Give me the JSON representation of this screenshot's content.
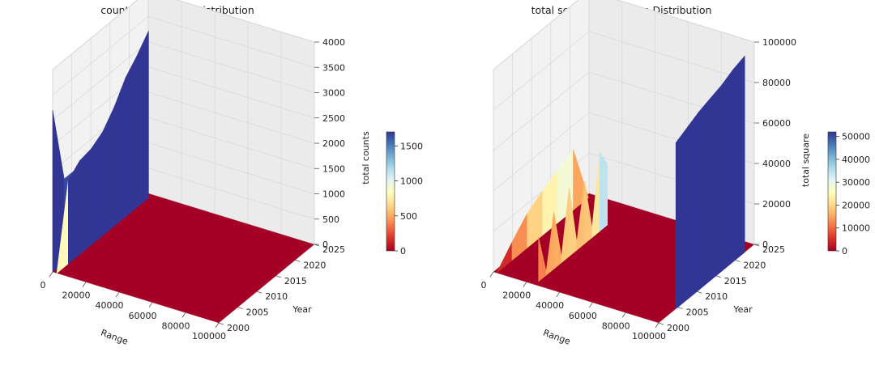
{
  "chart_data": [
    {
      "type": "surface3d",
      "title": "counts along time Distribution",
      "xlabel": "Range",
      "ylabel": "Year",
      "zlabel": "total counts",
      "xlim": [
        0,
        100000
      ],
      "ylim": [
        2000,
        2025
      ],
      "zlim": [
        0,
        4000
      ],
      "x_ticks": [
        "0",
        "20000",
        "40000",
        "60000",
        "80000",
        "100000"
      ],
      "y_ticks": [
        "2000",
        "2005",
        "2010",
        "2015",
        "2020",
        "2025"
      ],
      "z_ticks": [
        "0",
        "500",
        "1000",
        "1500",
        "2000",
        "2500",
        "3000",
        "3500",
        "4000"
      ],
      "colorbar": {
        "min": 0,
        "max": 1700,
        "ticks": [
          "0",
          "500",
          "1000",
          "1500"
        ]
      },
      "colormap": [
        "#a50026",
        "#d73027",
        "#f46d43",
        "#fdae61",
        "#fee090",
        "#ffffbf",
        "#e0f3f8",
        "#abd9e9",
        "#74add1",
        "#4575b4",
        "#313695"
      ],
      "grid": true,
      "series": [
        {
          "x": 0,
          "years": [
            2000,
            2003,
            2006,
            2009,
            2012,
            2015,
            2018,
            2021,
            2024
          ],
          "values": [
            3200,
            1650,
            1650,
            1650,
            1650,
            1650,
            1650,
            1650,
            1650
          ]
        },
        {
          "x": 2500,
          "years": [
            2000,
            2003,
            2006,
            2009,
            2012,
            2015,
            2018,
            2021,
            2024
          ],
          "values": [
            0,
            1650,
            1850,
            1900,
            2050,
            2350,
            2750,
            3000,
            3300
          ]
        }
      ]
    },
    {
      "type": "surface3d",
      "title": "total square along time Distribution",
      "xlabel": "Range",
      "ylabel": "Year",
      "zlabel": "total square",
      "xlim": [
        0,
        100000
      ],
      "ylim": [
        2000,
        2025
      ],
      "zlim": [
        0,
        100000
      ],
      "x_ticks": [
        "0",
        "20000",
        "40000",
        "60000",
        "80000",
        "100000"
      ],
      "y_ticks": [
        "2000",
        "2005",
        "2010",
        "2015",
        "2020",
        "2025"
      ],
      "z_ticks": [
        "0",
        "20000",
        "40000",
        "60000",
        "80000",
        "100000"
      ],
      "colorbar": {
        "min": 0,
        "max": 52000,
        "ticks": [
          "0",
          "10000",
          "20000",
          "30000",
          "40000",
          "50000"
        ]
      },
      "colormap": [
        "#a50026",
        "#d73027",
        "#f46d43",
        "#fdae61",
        "#fee090",
        "#ffffbf",
        "#e0f3f8",
        "#abd9e9",
        "#74add1",
        "#4575b4",
        "#313695"
      ],
      "grid": true,
      "series": [
        {
          "x": 2000,
          "years": [
            2000,
            2004,
            2008,
            2012,
            2016,
            2020,
            2024
          ],
          "values": [
            0,
            9000,
            17000,
            22000,
            26000,
            30000,
            0
          ]
        },
        {
          "x": 25000,
          "years": [
            2001,
            2003,
            2005,
            2007,
            2009,
            2011,
            2013,
            2015,
            2017,
            2019
          ],
          "values": [
            22000,
            2000,
            28000,
            3000,
            34000,
            4000,
            31000,
            5000,
            39000,
            30000
          ]
        },
        {
          "x": 100000,
          "years": [
            2004.5,
            2007.5,
            2010.5,
            2013.5,
            2016.5,
            2019.5,
            2022.5
          ],
          "values": [
            82000,
            85000,
            88000,
            90000,
            92000,
            95000,
            97000
          ]
        }
      ]
    }
  ]
}
